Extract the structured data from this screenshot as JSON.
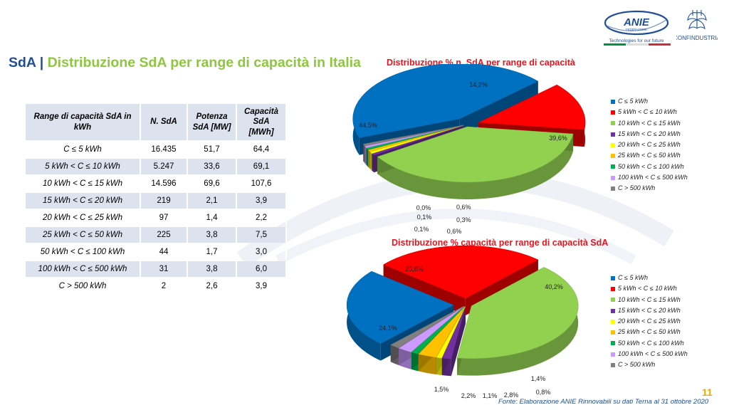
{
  "header": {
    "title_prefix": "SdA",
    "separator": "|",
    "title_main": "Distribuzione SdA per range di capacità in Italia",
    "logo_anie_text": "ANIE",
    "logo_anie_sub": "FEDERAZIONE",
    "logo_anie_tagline": "Technologies for our future",
    "logo_confindustria": "CONFINDUSTRIA"
  },
  "table": {
    "headers": [
      "Range di capacità SdA in kWh",
      "N. SdA",
      "Potenza SdA [MW]",
      "Capacità SdA [MWh]"
    ],
    "rows": [
      {
        "range": "C ≤ 5 kWh",
        "n": "16.435",
        "p": "51,7",
        "c": "64,4"
      },
      {
        "range": "5 kWh < C ≤ 10 kWh",
        "n": "5.247",
        "p": "33,6",
        "c": "69,1"
      },
      {
        "range": "10 kWh < C ≤ 15 kWh",
        "n": "14.596",
        "p": "69,6",
        "c": "107,6"
      },
      {
        "range": "15 kWh < C  ≤ 20 kWh",
        "n": "219",
        "p": "2,1",
        "c": "3,9"
      },
      {
        "range": "20 kWh < C  ≤ 25 kWh",
        "n": "97",
        "p": "1,4",
        "c": "2,2"
      },
      {
        "range": "25 kWh < C  ≤ 50 kWh",
        "n": "225",
        "p": "3,8",
        "c": "7,5"
      },
      {
        "range": "50 kWh < C  ≤ 100 kWh",
        "n": "44",
        "p": "1,7",
        "c": "3,0"
      },
      {
        "range": "100 kWh < C  ≤ 500 kWh",
        "n": "31",
        "p": "3,8",
        "c": "6,0"
      },
      {
        "range": "C  > 500 kWh",
        "n": "2",
        "p": "2,6",
        "c": "3,9"
      }
    ]
  },
  "colors": [
    "#0070c0",
    "#ff0000",
    "#92d050",
    "#7030a0",
    "#ffff00",
    "#ffc000",
    "#00b050",
    "#cc99ff",
    "#808080"
  ],
  "chart_data": [
    {
      "type": "pie",
      "title": "Distribuzione % n. SdA per range di capacità",
      "legend_position": "right",
      "categories": [
        "C ≤ 5 kWh",
        "5 kWh < C ≤ 10 kWh",
        "10 kWh < C ≤ 15 kWh",
        "15 kWh < C  ≤ 20 kWh",
        "20 kWh < C  ≤ 25 kWh",
        "25 kWh < C  ≤ 50 kWh",
        "50 kWh < C  ≤ 100 kWh",
        "100 kWh < C  ≤ 500 kWh",
        "C  > 500 kWh"
      ],
      "values": [
        44.5,
        14.2,
        39.6,
        0.6,
        0.3,
        0.6,
        0.1,
        0.1,
        0.0
      ],
      "labels": [
        "44,5%",
        "14,2%",
        "39,6%",
        "0,6%",
        "0,3%",
        "0,6%",
        "0,1%",
        "0,1%",
        "0,0%"
      ]
    },
    {
      "type": "pie",
      "title": "Distribuzione % capacità per range di capacità SdA",
      "legend_position": "right",
      "categories": [
        "C ≤ 5 kWh",
        "5 kWh < C ≤ 10 kWh",
        "10 kWh < C ≤ 15 kWh",
        "15 kWh < C  ≤ 20 kWh",
        "20 kWh < C  ≤ 25 kWh",
        "25 kWh < C  ≤ 50 kWh",
        "50 kWh < C  ≤ 100 kWh",
        "100 kWh < C  ≤ 500 kWh",
        "C  > 500 kWh"
      ],
      "values": [
        24.1,
        25.8,
        40.2,
        1.4,
        0.8,
        2.8,
        1.1,
        2.2,
        1.5
      ],
      "labels": [
        "24,1%",
        "25,8%",
        "40,2%",
        "1,4%",
        "0,8%",
        "2,8%",
        "1,1%",
        "2,2%",
        "1,5%"
      ]
    }
  ],
  "page_number": "11",
  "footer": "Fonte: Elaborazione ANIE Rinnovabili su dati Terna al 31 ottobre 2020"
}
